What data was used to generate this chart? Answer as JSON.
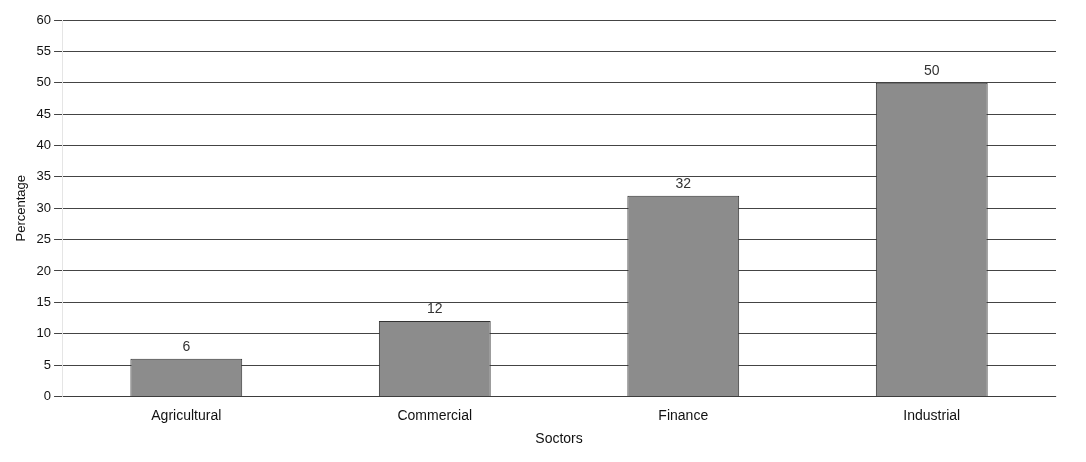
{
  "chart_data": {
    "type": "bar",
    "xlabel": "Soctors",
    "ylabel": "Percentage",
    "categories": [
      "Agricultural",
      "Commercial",
      "Finance",
      "Industrial"
    ],
    "values": [
      6,
      12,
      32,
      50
    ],
    "color": "#8c8c8c",
    "ylim": [
      0,
      60
    ],
    "yticks": [
      0,
      5,
      10,
      15,
      20,
      25,
      30,
      35,
      40,
      45,
      50,
      55,
      60
    ],
    "grid": "y",
    "data_labels": true
  }
}
